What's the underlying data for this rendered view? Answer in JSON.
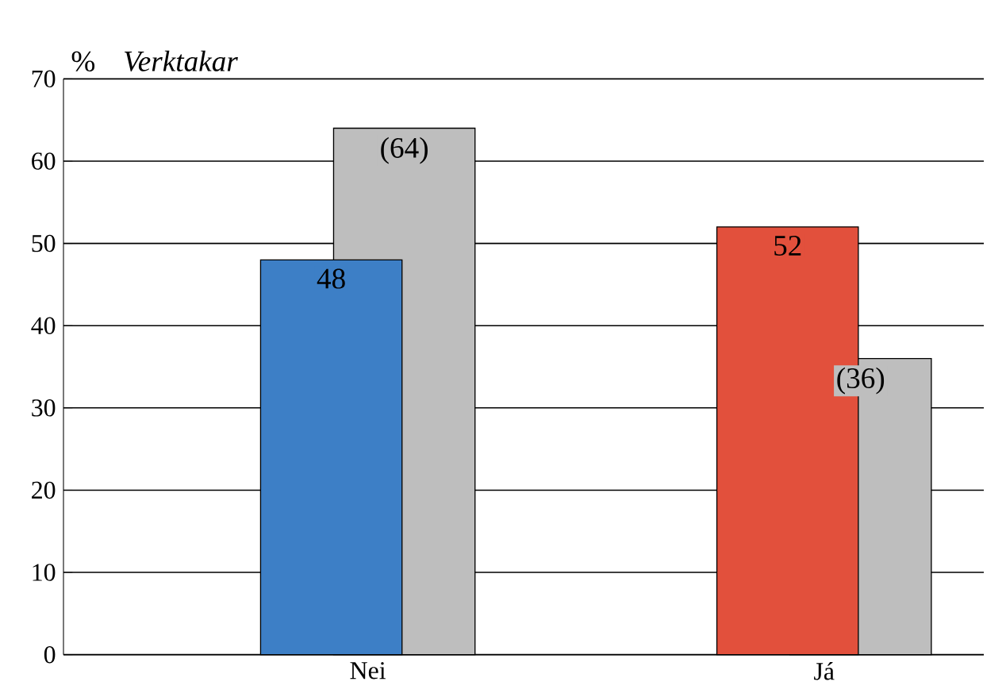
{
  "chart_data": {
    "type": "bar",
    "title": "Verktakar",
    "ylabel": "%",
    "categories": [
      "Nei",
      "Já"
    ],
    "series": [
      {
        "colors": [
          "#3d7fc6",
          "#e2503c"
        ],
        "values": [
          48,
          52
        ],
        "value_labels": [
          "48",
          "52"
        ]
      },
      {
        "color": "#bebebe",
        "values": [
          64,
          36
        ],
        "value_labels": [
          "(64)",
          "(36)"
        ]
      }
    ],
    "ylim": [
      0,
      70
    ],
    "yticks": [
      0,
      10,
      20,
      30,
      40,
      50,
      60,
      70
    ],
    "grid": "y"
  }
}
